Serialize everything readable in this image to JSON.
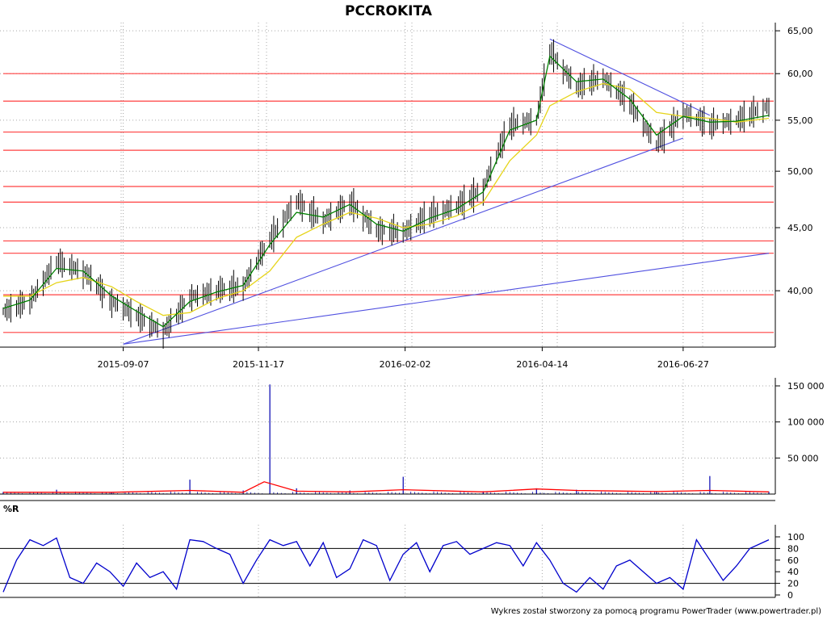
{
  "title": "PCCROKITA",
  "footer": "Wykres został stworzony za pomocą programu PowerTrader (www.powertrader.pl)",
  "colors": {
    "candle": "#000000",
    "ma_short": "#008000",
    "ma_long": "#e6d419",
    "support_resistance": "#ff4040",
    "trendline": "#5050e0",
    "volume": "#0000b0",
    "volume_avg": "#ff0000",
    "williams_r": "#0000cc",
    "grid": "#a8a8a8"
  },
  "chart_data": [
    {
      "type": "line",
      "panel": "price",
      "title": "PCCROKITA",
      "xlabel": "",
      "ylabel": "",
      "x_ticks": [
        "2015-09-07",
        "2015-11-17",
        "2016-02-02",
        "2016-04-14",
        "2016-06-27"
      ],
      "y_ticks": [
        "40,00",
        "45,00",
        "50,00",
        "55,00",
        "60,00",
        "65,00"
      ],
      "ylim": [
        36.0,
        66.0
      ],
      "y_scale": "log",
      "date_range": [
        "2015-07-06",
        "2016-08-11"
      ],
      "series": [
        {
          "name": "",
          "role": "close",
          "x": [
            "2015-07-06",
            "2015-07-20",
            "2015-08-03",
            "2015-08-17",
            "2015-09-01",
            "2015-09-14",
            "2015-09-28",
            "2015-10-12",
            "2015-10-26",
            "2015-11-09",
            "2015-11-23",
            "2015-12-07",
            "2015-12-21",
            "2016-01-04",
            "2016-01-18",
            "2016-02-01",
            "2016-02-15",
            "2016-02-29",
            "2016-03-14",
            "2016-03-28",
            "2016-04-11",
            "2016-04-18",
            "2016-05-02",
            "2016-05-16",
            "2016-05-30",
            "2016-06-13",
            "2016-06-27",
            "2016-07-11",
            "2016-07-25",
            "2016-08-11"
          ],
          "values": [
            38.5,
            39.2,
            42.2,
            41.5,
            39.2,
            38.2,
            37.0,
            39.5,
            40.0,
            40.3,
            44.0,
            47.3,
            45.5,
            47.2,
            44.8,
            44.6,
            46.1,
            46.8,
            48.4,
            54.5,
            55.0,
            62.5,
            58.5,
            59.5,
            56.8,
            52.5,
            55.8,
            54.5,
            55.0,
            56.5
          ]
        },
        {
          "name": "",
          "role": "ma_short",
          "x": [
            "2015-07-06",
            "2015-07-20",
            "2015-08-03",
            "2015-08-17",
            "2015-09-01",
            "2015-09-14",
            "2015-09-28",
            "2015-10-12",
            "2015-10-26",
            "2015-11-09",
            "2015-11-23",
            "2015-12-07",
            "2015-12-21",
            "2016-01-04",
            "2016-01-18",
            "2016-02-01",
            "2016-02-15",
            "2016-02-29",
            "2016-03-14",
            "2016-03-28",
            "2016-04-11",
            "2016-04-18",
            "2016-05-02",
            "2016-05-16",
            "2016-05-30",
            "2016-06-13",
            "2016-06-27",
            "2016-07-11",
            "2016-07-25",
            "2016-08-11"
          ],
          "values": [
            38.7,
            39.3,
            41.7,
            41.5,
            39.6,
            38.5,
            37.4,
            39.2,
            39.9,
            40.4,
            43.6,
            46.3,
            45.9,
            47.0,
            45.3,
            44.7,
            45.8,
            46.6,
            48.1,
            54.0,
            55.0,
            62.0,
            59.1,
            59.4,
            57.2,
            53.5,
            55.4,
            54.8,
            54.9,
            55.5
          ]
        },
        {
          "name": "",
          "role": "ma_long",
          "x": [
            "2015-07-06",
            "2015-07-20",
            "2015-08-03",
            "2015-08-17",
            "2015-09-01",
            "2015-09-14",
            "2015-09-28",
            "2015-10-12",
            "2015-10-26",
            "2015-11-09",
            "2015-11-23",
            "2015-12-07",
            "2015-12-21",
            "2016-01-04",
            "2016-01-18",
            "2016-02-01",
            "2016-02-15",
            "2016-02-29",
            "2016-03-14",
            "2016-03-28",
            "2016-04-11",
            "2016-04-18",
            "2016-05-02",
            "2016-05-16",
            "2016-05-30",
            "2016-06-13",
            "2016-06-27",
            "2016-07-11",
            "2016-07-25",
            "2016-08-11"
          ],
          "values": [
            39.6,
            39.6,
            40.6,
            41.0,
            40.3,
            39.2,
            38.2,
            38.4,
            39.4,
            40.0,
            41.5,
            44.2,
            45.3,
            46.3,
            45.8,
            45.0,
            45.3,
            46.0,
            47.2,
            51.0,
            53.5,
            56.5,
            58.0,
            58.9,
            58.3,
            55.8,
            55.4,
            55.2,
            54.8,
            55.2
          ]
        }
      ],
      "horizontal_levels": [
        37.0,
        39.7,
        42.9,
        43.9,
        47.2,
        48.6,
        52.0,
        53.8,
        57.0,
        60.0
      ],
      "trendlines": [
        {
          "from": [
            "2015-09-07",
            36.2
          ],
          "to": [
            "2016-08-11",
            42.9
          ]
        },
        {
          "from": [
            "2015-09-07",
            36.2
          ],
          "to": [
            "2016-06-27",
            53.2
          ]
        },
        {
          "from": [
            "2016-04-18",
            64.0
          ],
          "to": [
            "2016-07-11",
            55.5
          ]
        }
      ]
    },
    {
      "type": "bar",
      "panel": "volume",
      "xlabel": "",
      "ylabel": "",
      "y_ticks": [
        "50 000",
        "100 000",
        "150 000"
      ],
      "ylim": [
        0,
        160000
      ],
      "series": [
        {
          "name": "",
          "role": "volume",
          "x": [
            "2015-07-06",
            "2015-08-03",
            "2015-09-01",
            "2015-10-12",
            "2015-11-09",
            "2015-11-23",
            "2015-12-07",
            "2016-01-04",
            "2016-02-01",
            "2016-03-14",
            "2016-04-11",
            "2016-05-02",
            "2016-06-13",
            "2016-07-11",
            "2016-08-11"
          ],
          "values": [
            3000,
            6000,
            2500,
            20000,
            5000,
            152000,
            8000,
            5000,
            24000,
            4000,
            8000,
            6000,
            4000,
            25000,
            3000
          ]
        },
        {
          "name": "",
          "role": "volume_avg",
          "x": [
            "2015-07-06",
            "2015-09-01",
            "2015-10-12",
            "2015-11-09",
            "2015-11-20",
            "2015-12-07",
            "2016-01-04",
            "2016-02-01",
            "2016-03-14",
            "2016-04-11",
            "2016-05-02",
            "2016-06-13",
            "2016-07-11",
            "2016-08-11"
          ],
          "values": [
            2500,
            2500,
            5000,
            2500,
            17000,
            4000,
            3000,
            6000,
            3000,
            7000,
            5000,
            3500,
            5000,
            3000
          ]
        }
      ]
    },
    {
      "type": "line",
      "panel": "williams_r",
      "panel_label": "%R",
      "xlabel": "",
      "ylabel": "",
      "y_ticks": [
        "0",
        "20",
        "40",
        "60",
        "80",
        "100"
      ],
      "ylim": [
        0,
        100
      ],
      "reference_lines": [
        20,
        80
      ],
      "series": [
        {
          "name": "",
          "role": "williams_r",
          "x": [
            "2015-07-06",
            "2015-07-13",
            "2015-07-20",
            "2015-07-27",
            "2015-08-03",
            "2015-08-10",
            "2015-08-17",
            "2015-08-24",
            "2015-08-31",
            "2015-09-07",
            "2015-09-14",
            "2015-09-21",
            "2015-09-28",
            "2015-10-05",
            "2015-10-12",
            "2015-10-19",
            "2015-10-26",
            "2015-11-02",
            "2015-11-09",
            "2015-11-16",
            "2015-11-23",
            "2015-11-30",
            "2015-12-07",
            "2015-12-14",
            "2015-12-21",
            "2015-12-28",
            "2016-01-04",
            "2016-01-11",
            "2016-01-18",
            "2016-01-25",
            "2016-02-01",
            "2016-02-08",
            "2016-02-15",
            "2016-02-22",
            "2016-02-29",
            "2016-03-07",
            "2016-03-14",
            "2016-03-21",
            "2016-03-28",
            "2016-04-04",
            "2016-04-11",
            "2016-04-18",
            "2016-04-25",
            "2016-05-02",
            "2016-05-09",
            "2016-05-16",
            "2016-05-23",
            "2016-05-30",
            "2016-06-06",
            "2016-06-13",
            "2016-06-20",
            "2016-06-27",
            "2016-07-04",
            "2016-07-11",
            "2016-07-18",
            "2016-07-25",
            "2016-08-01",
            "2016-08-11"
          ],
          "values": [
            5,
            60,
            95,
            85,
            98,
            30,
            20,
            55,
            40,
            15,
            55,
            30,
            40,
            10,
            95,
            92,
            80,
            70,
            20,
            60,
            95,
            85,
            92,
            50,
            90,
            30,
            45,
            95,
            85,
            25,
            70,
            90,
            40,
            85,
            92,
            70,
            80,
            90,
            85,
            50,
            90,
            60,
            20,
            5,
            30,
            10,
            50,
            60,
            40,
            20,
            30,
            10,
            95,
            60,
            25,
            50,
            80,
            95
          ]
        }
      ]
    }
  ]
}
